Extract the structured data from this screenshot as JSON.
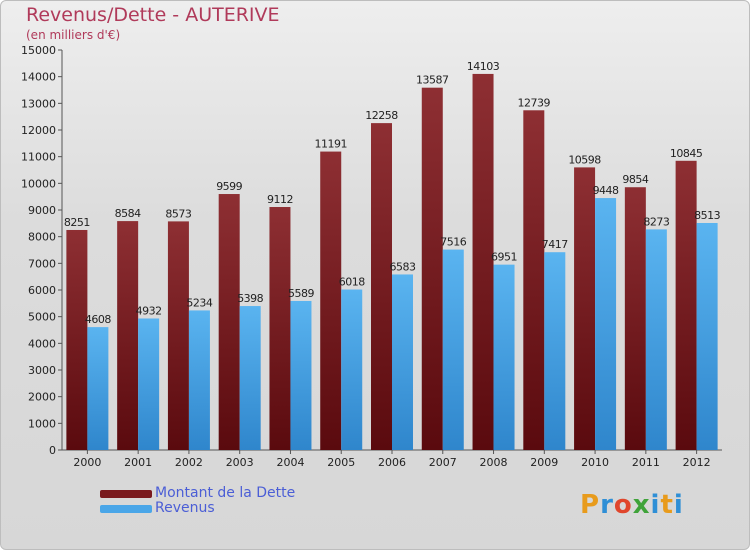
{
  "header": {
    "title": "Revenus/Dette - AUTERIVE",
    "subtitle": "(en milliers d'€)"
  },
  "legend": {
    "items": [
      {
        "label": "Montant de la Dette",
        "color": "#7a1a1e"
      },
      {
        "label": "Revenus",
        "color": "#4aa6e8"
      }
    ]
  },
  "brand": {
    "letters": [
      "P",
      "r",
      "o",
      "x",
      "i",
      "t",
      "i"
    ],
    "name": "Proxiti"
  },
  "chart_data": {
    "type": "bar",
    "title": "Revenus/Dette - AUTERIVE",
    "ylabel": "(en milliers d'€)",
    "xlabel": "",
    "ylim": [
      0,
      15000
    ],
    "yticks": [
      0,
      1000,
      2000,
      3000,
      4000,
      5000,
      6000,
      7000,
      8000,
      9000,
      10000,
      11000,
      12000,
      13000,
      14000,
      15000
    ],
    "grid": false,
    "legend_position": "bottom-left",
    "categories": [
      "2000",
      "2001",
      "2002",
      "2003",
      "2004",
      "2005",
      "2006",
      "2007",
      "2008",
      "2009",
      "2010",
      "2011",
      "2012"
    ],
    "series": [
      {
        "name": "Montant de la Dette",
        "color": "#7a1a1e",
        "values": [
          8251,
          8584,
          8573,
          9599,
          9112,
          11191,
          12258,
          13587,
          14103,
          12739,
          10598,
          9854,
          10845
        ]
      },
      {
        "name": "Revenus",
        "color": "#4aa6e8",
        "values": [
          4608,
          4932,
          5234,
          5398,
          5589,
          6018,
          6583,
          7516,
          6951,
          7417,
          9448,
          8273,
          8513
        ]
      }
    ]
  }
}
